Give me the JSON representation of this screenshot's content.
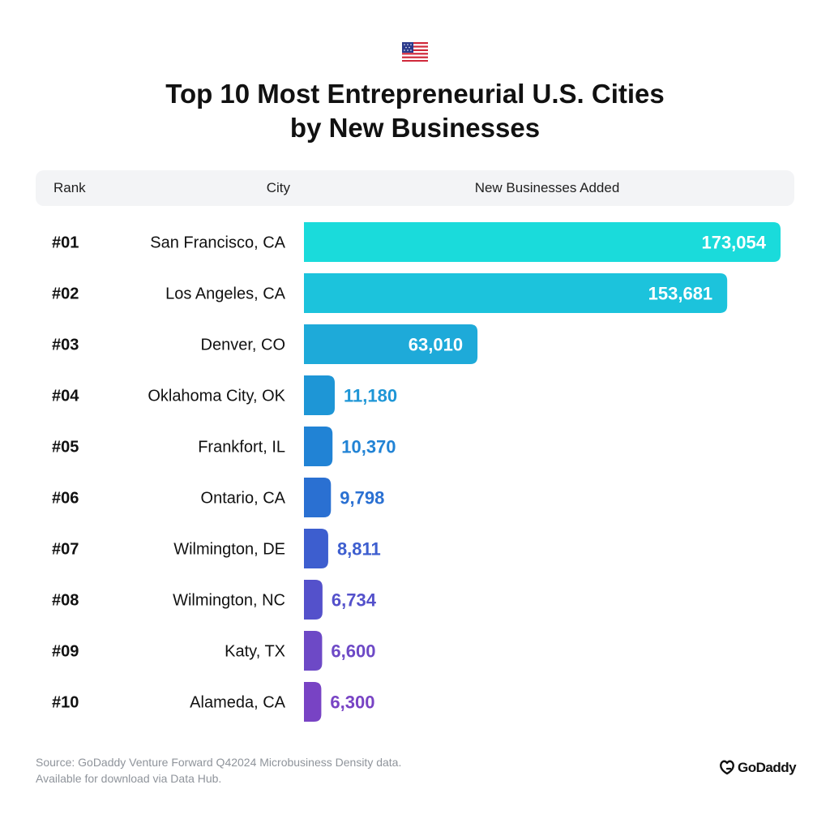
{
  "header": {
    "title_line1": "Top 10 Most Entrepreneurial U.S. Cities",
    "title_line2": "by New Businesses",
    "flag_icon": "us-flag-icon"
  },
  "table_header": {
    "rank": "Rank",
    "city": "City",
    "value": "New Businesses Added"
  },
  "chart_data": {
    "type": "bar",
    "orientation": "horizontal",
    "title": "Top 10 Most Entrepreneurial U.S. Cities by New Businesses",
    "xlabel": "New Businesses Added",
    "ylabel": "City",
    "grid": false,
    "xlim": [
      0,
      173054
    ],
    "ranks": [
      "#01",
      "#02",
      "#03",
      "#04",
      "#05",
      "#06",
      "#07",
      "#08",
      "#09",
      "#10"
    ],
    "categories": [
      "San Francisco, CA",
      "Los Angeles, CA",
      "Denver, CO",
      "Oklahoma City, OK",
      "Frankfort, IL",
      "Ontario, CA",
      "Wilmington, DE",
      "Wilmington, NC",
      "Katy, TX",
      "Alameda, CA"
    ],
    "values": [
      173054,
      153681,
      63010,
      11180,
      10370,
      9798,
      8811,
      6734,
      6600,
      6300
    ],
    "value_labels": [
      "173,054",
      "153,681",
      "63,010",
      "11,180",
      "10,370",
      "9,798",
      "8,811",
      "6,734",
      "6,600",
      "6,300"
    ],
    "colors": [
      "#1adbdb",
      "#1cc3dc",
      "#1eaad9",
      "#1e96d6",
      "#2183d5",
      "#2a70d2",
      "#3d5ecf",
      "#5451cb",
      "#6d49c6",
      "#7843c4"
    ]
  },
  "footer": {
    "source_line1": "Source: GoDaddy Venture Forward Q42024 Microbusiness Density data.",
    "source_line2": "Available for download via Data Hub.",
    "logo_text": "GoDaddy",
    "logo_icon": "godaddy-logo-icon"
  }
}
